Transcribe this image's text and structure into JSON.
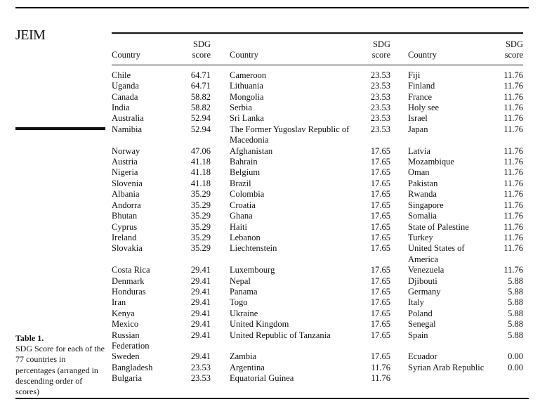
{
  "header": {
    "journal": "JEIM"
  },
  "caption": {
    "label": "Table 1.",
    "text": "SDG Score for each of the 77 countries in percentages (arranged in descending order of scores)"
  },
  "table": {
    "columns": [
      "Country",
      "SDG score",
      "Country",
      "SDG score",
      "Country",
      "SDG score"
    ],
    "rows": [
      [
        "Chile",
        "64.71",
        "Cameroon",
        "23.53",
        "Fiji",
        "11.76"
      ],
      [
        "Uganda",
        "64.71",
        "Lithuania",
        "23.53",
        "Finland",
        "11.76"
      ],
      [
        "Canada",
        "58.82",
        "Mongolia",
        "23.53",
        "France",
        "11.76"
      ],
      [
        "India",
        "58.82",
        "Serbia",
        "23.53",
        "Holy see",
        "11.76"
      ],
      [
        "Australia",
        "52.94",
        "Sri Lanka",
        "23.53",
        "Israel",
        "11.76"
      ],
      [
        "Namibia",
        "52.94",
        "The Former Yugoslav Republic of Macedonia",
        "23.53",
        "Japan",
        "11.76"
      ],
      [
        "Norway",
        "47.06",
        "Afghanistan",
        "17.65",
        "Latvia",
        "11.76"
      ],
      [
        "Austria",
        "41.18",
        "Bahrain",
        "17.65",
        "Mozambique",
        "11.76"
      ],
      [
        "Nigeria",
        "41.18",
        "Belgium",
        "17.65",
        "Oman",
        "11.76"
      ],
      [
        "Slovenia",
        "41.18",
        "Brazil",
        "17.65",
        "Pakistan",
        "11.76"
      ],
      [
        "Albania",
        "35.29",
        "Colombia",
        "17.65",
        "Rwanda",
        "11.76"
      ],
      [
        "Andorra",
        "35.29",
        "Croatia",
        "17.65",
        "Singapore",
        "11.76"
      ],
      [
        "Bhutan",
        "35.29",
        "Ghana",
        "17.65",
        "Somalia",
        "11.76"
      ],
      [
        "Cyprus",
        "35.29",
        "Haiti",
        "17.65",
        "State of Palestine",
        "11.76"
      ],
      [
        "Ireland",
        "35.29",
        "Lebanon",
        "17.65",
        "Turkey",
        "11.76"
      ],
      [
        "Slovakia",
        "35.29",
        "Liechtenstein",
        "17.65",
        "United States of America",
        "11.76"
      ],
      [
        "Costa Rica",
        "29.41",
        "Luxembourg",
        "17.65",
        "Venezuela",
        "11.76"
      ],
      [
        "Denmark",
        "29.41",
        "Nepal",
        "17.65",
        "Djibouti",
        "5.88"
      ],
      [
        "Honduras",
        "29.41",
        "Panama",
        "17.65",
        "Germany",
        "5.88"
      ],
      [
        "Iran",
        "29.41",
        "Togo",
        "17.65",
        "Italy",
        "5.88"
      ],
      [
        "Kenya",
        "29.41",
        "Ukraine",
        "17.65",
        "Poland",
        "5.88"
      ],
      [
        "Mexico",
        "29.41",
        "United Kingdom",
        "17.65",
        "Senegal",
        "5.88"
      ],
      [
        "Russian Federation",
        "29.41",
        "United Republic of Tanzania",
        "17.65",
        "Spain",
        "5.88"
      ],
      [
        "Sweden",
        "29.41",
        "Zambia",
        "17.65",
        "Ecuador",
        "0.00"
      ],
      [
        "Bangladesh",
        "23.53",
        "Argentina",
        "11.76",
        "Syrian Arab Republic",
        "0.00"
      ],
      [
        "Bulgaria",
        "23.53",
        "Equatorial Guinea",
        "11.76",
        null,
        null
      ]
    ]
  }
}
